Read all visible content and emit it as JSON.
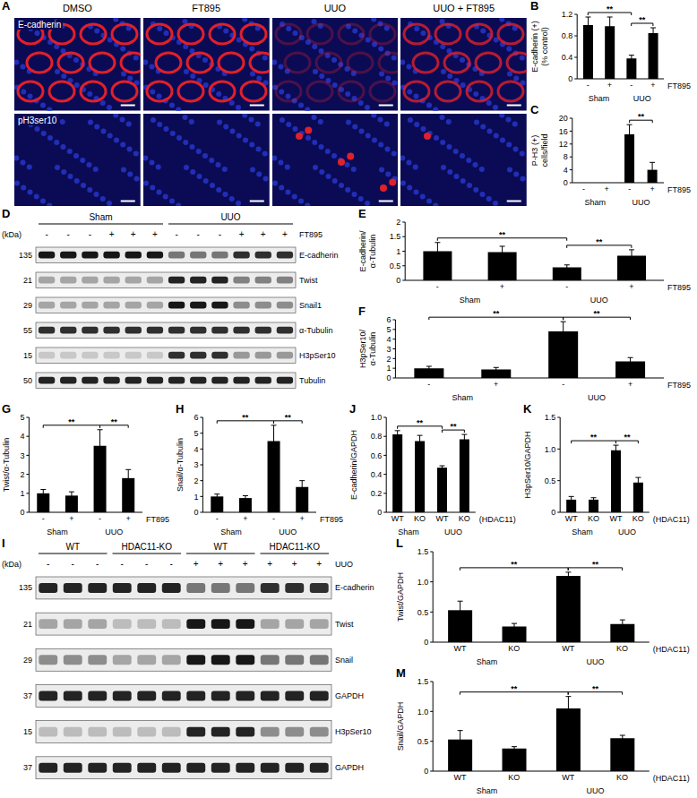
{
  "images": {
    "panel": "A",
    "columns": [
      "DMSO",
      "FT895",
      "UUO",
      "UUO + FT895"
    ],
    "background": "#0b0b55",
    "rows": [
      {
        "label": "E-cadherin",
        "color": "#e0202a",
        "marker": "ring",
        "signal": [
          1,
          1,
          0.3,
          0.8
        ]
      },
      {
        "label": "pH3ser10",
        "color": "#e0202a",
        "marker": "dot",
        "signal": [
          0,
          0,
          1,
          0.2
        ]
      }
    ]
  },
  "chart_data": [
    {
      "panel": "B",
      "type": "bar",
      "ylabel": [
        "E-cadherin (+)",
        "(% control)"
      ],
      "categories": [
        "-",
        "+",
        "-",
        "+"
      ],
      "groups": [
        "Sham",
        "UUO"
      ],
      "x_label": "FT895",
      "values": [
        1.0,
        0.98,
        0.38,
        0.85
      ],
      "errors": [
        0.15,
        0.17,
        0.06,
        0.1
      ],
      "color": "#000000",
      "ylim": [
        0,
        1.2
      ],
      "yticks": [
        0,
        0.4,
        0.8,
        1.2
      ],
      "significance": [
        {
          "from": 0,
          "to": 2,
          "label": "**"
        },
        {
          "from": 2,
          "to": 3,
          "label": "**"
        }
      ]
    },
    {
      "panel": "C",
      "type": "bar",
      "ylabel": [
        "P-H3 (+)",
        "cells/field"
      ],
      "categories": [
        "-",
        "+",
        "-",
        "+"
      ],
      "groups": [
        "Sham",
        "UUO"
      ],
      "x_label": "FT895",
      "values": [
        0,
        0,
        15,
        4
      ],
      "errors": [
        0,
        0,
        3,
        2.3
      ],
      "color": "#000000",
      "ylim": [
        0,
        20
      ],
      "yticks": [
        0,
        4,
        8,
        12,
        16,
        20
      ],
      "significance": [
        {
          "from": 2,
          "to": 3,
          "label": "**"
        }
      ]
    },
    {
      "panel": "E",
      "type": "bar",
      "ylabel": "E-cadherin/α-Tubulin",
      "categories": [
        "-",
        "+",
        "-",
        "+"
      ],
      "groups": [
        "Sham",
        "UUO"
      ],
      "x_label": "FT895",
      "values": [
        1.0,
        0.97,
        0.45,
        0.85
      ],
      "errors": [
        0.3,
        0.2,
        0.08,
        0.2
      ],
      "color": "#000000",
      "ylim": [
        0,
        2
      ],
      "yticks": [
        0,
        0.5,
        1,
        1.5,
        2
      ],
      "significance": [
        {
          "from": 0,
          "to": 2,
          "label": "**"
        },
        {
          "from": 2,
          "to": 3,
          "label": "**"
        }
      ]
    },
    {
      "panel": "F",
      "type": "bar",
      "ylabel": "H3pSer10/α-Tubulin",
      "categories": [
        "-",
        "+",
        "-",
        "+"
      ],
      "groups": [
        "Sham",
        "UUO"
      ],
      "x_label": "FT895",
      "values": [
        1.0,
        0.88,
        4.8,
        1.7
      ],
      "errors": [
        0.2,
        0.2,
        1.0,
        0.4
      ],
      "color": "#000000",
      "ylim": [
        0,
        6
      ],
      "yticks": [
        0,
        1,
        2,
        3,
        4,
        5,
        6
      ],
      "significance": [
        {
          "from": 0,
          "to": 2,
          "label": "**"
        },
        {
          "from": 2,
          "to": 3,
          "label": "**"
        }
      ]
    },
    {
      "panel": "G",
      "type": "bar",
      "ylabel": "Twist/α-Tubulin",
      "categories": [
        "-",
        "+",
        "-",
        "+"
      ],
      "groups": [
        "Sham",
        "UUO"
      ],
      "x_label": "FT895",
      "values": [
        1.0,
        0.88,
        3.5,
        1.8
      ],
      "errors": [
        0.2,
        0.2,
        0.85,
        0.45
      ],
      "color": "#000000",
      "ylim": [
        0,
        5
      ],
      "yticks": [
        0,
        1,
        2,
        3,
        4,
        5
      ],
      "significance": [
        {
          "from": 0,
          "to": 2,
          "label": "**"
        },
        {
          "from": 2,
          "to": 3,
          "label": "**"
        }
      ]
    },
    {
      "panel": "H",
      "type": "bar",
      "ylabel": "Snail/α-Tubulin",
      "categories": [
        "-",
        "+",
        "-",
        "+"
      ],
      "groups": [
        "Sham",
        "UUO"
      ],
      "x_label": "FT895",
      "values": [
        1.0,
        0.9,
        4.5,
        1.6
      ],
      "errors": [
        0.15,
        0.15,
        1.0,
        0.4
      ],
      "color": "#000000",
      "ylim": [
        0,
        6
      ],
      "yticks": [
        0,
        1,
        2,
        3,
        4,
        5,
        6
      ],
      "significance": [
        {
          "from": 0,
          "to": 2,
          "label": "**"
        },
        {
          "from": 2,
          "to": 3,
          "label": "**"
        }
      ]
    },
    {
      "panel": "J",
      "type": "bar",
      "ylabel": "E-cadherin/GAPDH",
      "categories": [
        "WT",
        "KO",
        "WT",
        "KO"
      ],
      "groups": [
        "Sham",
        "UUO"
      ],
      "x_label": "(HDAC11)",
      "values": [
        0.82,
        0.75,
        0.47,
        0.77
      ],
      "errors": [
        0.04,
        0.06,
        0.02,
        0.05
      ],
      "color": "#000000",
      "ylim": [
        0,
        1
      ],
      "yticks": [
        0,
        0.2,
        0.4,
        0.6,
        0.8,
        {
          "value": 1,
          "label": "1.0"
        }
      ],
      "significance": [
        {
          "from": 0,
          "to": 2,
          "label": "**"
        },
        {
          "from": 2,
          "to": 3,
          "label": "**"
        }
      ]
    },
    {
      "panel": "K",
      "type": "bar",
      "ylabel": "H3pSer10/GAPDH",
      "categories": [
        "WT",
        "KO",
        "WT",
        "KO"
      ],
      "groups": [
        "Sham",
        "UUO"
      ],
      "x_label": "(HDAC11)",
      "values": [
        0.2,
        0.2,
        0.98,
        0.47
      ],
      "errors": [
        0.05,
        0.03,
        0.08,
        0.08
      ],
      "color": "#000000",
      "ylim": [
        0,
        1.5
      ],
      "yticks": [
        0,
        0.5,
        {
          "value": 1,
          "label": "1.0"
        },
        1.5
      ],
      "significance": [
        {
          "from": 0,
          "to": 2,
          "label": "**"
        },
        {
          "from": 2,
          "to": 3,
          "label": "**"
        }
      ]
    },
    {
      "panel": "L",
      "type": "bar",
      "ylabel": "Twist/GAPDH",
      "categories": [
        "WT",
        "KO",
        "WT",
        "KO"
      ],
      "groups": [
        "Sham",
        "UUO"
      ],
      "x_label": "(HDAC11)",
      "values": [
        0.53,
        0.26,
        1.1,
        0.3
      ],
      "errors": [
        0.15,
        0.05,
        0.06,
        0.07
      ],
      "color": "#000000",
      "ylim": [
        0,
        1.5
      ],
      "yticks": [
        0,
        0.5,
        {
          "value": 1,
          "label": "1.0"
        },
        1.5
      ],
      "significance": [
        {
          "from": 0,
          "to": 2,
          "label": "**"
        },
        {
          "from": 2,
          "to": 3,
          "label": "**"
        }
      ]
    },
    {
      "panel": "M",
      "type": "bar",
      "ylabel": "Snail/GAPDH",
      "categories": [
        "WT",
        "KO",
        "WT",
        "KO"
      ],
      "groups": [
        "Sham",
        "UUO"
      ],
      "x_label": "(HDAC11)",
      "values": [
        0.53,
        0.38,
        1.05,
        0.55
      ],
      "errors": [
        0.15,
        0.03,
        0.2,
        0.05
      ],
      "color": "#000000",
      "ylim": [
        0,
        1.5
      ],
      "yticks": [
        0,
        0.5,
        {
          "value": 1,
          "label": "1.0"
        },
        1.5
      ],
      "significance": [
        {
          "from": 0,
          "to": 2,
          "label": "**"
        },
        {
          "from": 2,
          "to": 3,
          "label": "**"
        }
      ]
    }
  ],
  "blots": [
    {
      "panel": "D",
      "kda_label": "(kDa)",
      "groups": [
        {
          "label": "Sham",
          "lanes": 6
        },
        {
          "label": "UUO",
          "lanes": 6
        }
      ],
      "treatment": {
        "label": "FT895",
        "signs": [
          "-",
          "-",
          "-",
          "+",
          "+",
          "+",
          "-",
          "-",
          "-",
          "+",
          "+",
          "+"
        ]
      },
      "rows": [
        {
          "kda": 135,
          "name": "E-cadherin",
          "bands": [
            0.9,
            0.9,
            0.9,
            0.9,
            0.9,
            0.9,
            0.5,
            0.5,
            0.5,
            0.8,
            0.8,
            0.8
          ]
        },
        {
          "kda": 21,
          "name": "Twist",
          "bands": [
            0.3,
            0.3,
            0.3,
            0.3,
            0.3,
            0.3,
            0.85,
            0.85,
            0.85,
            0.45,
            0.45,
            0.45
          ]
        },
        {
          "kda": 29,
          "name": "Snail1",
          "bands": [
            0.3,
            0.3,
            0.3,
            0.3,
            0.3,
            0.3,
            0.9,
            0.9,
            0.9,
            0.4,
            0.4,
            0.4
          ]
        },
        {
          "kda": 55,
          "name": "α-Tubulin",
          "bands": [
            0.8,
            0.8,
            0.8,
            0.8,
            0.8,
            0.8,
            0.8,
            0.8,
            0.8,
            0.8,
            0.8,
            0.8
          ]
        },
        {
          "kda": 15,
          "name": "H3pSer10",
          "bands": [
            0.15,
            0.15,
            0.15,
            0.15,
            0.15,
            0.15,
            0.8,
            0.8,
            0.8,
            0.35,
            0.35,
            0.35
          ]
        },
        {
          "kda": 50,
          "name": "Tubulin",
          "bands": [
            0.85,
            0.85,
            0.85,
            0.85,
            0.85,
            0.85,
            0.85,
            0.85,
            0.85,
            0.85,
            0.85,
            0.85
          ]
        }
      ]
    },
    {
      "panel": "I",
      "kda_label": "(kDa)",
      "groups": [
        {
          "label": "WT",
          "lanes": 3
        },
        {
          "label": "HDAC11-KO",
          "lanes": 3
        },
        {
          "label": "WT",
          "lanes": 3
        },
        {
          "label": "HDAC11-KO",
          "lanes": 3
        }
      ],
      "treatment": {
        "label": "UUO",
        "signs": [
          "-",
          "-",
          "-",
          "-",
          "-",
          "-",
          "+",
          "+",
          "+",
          "+",
          "+",
          "+"
        ]
      },
      "rows": [
        {
          "kda": 135,
          "name": "E-cadherin",
          "bands": [
            0.85,
            0.85,
            0.85,
            0.85,
            0.85,
            0.85,
            0.5,
            0.5,
            0.5,
            0.8,
            0.8,
            0.8
          ]
        },
        {
          "kda": 21,
          "name": "Twist",
          "bands": [
            0.3,
            0.3,
            0.3,
            0.2,
            0.2,
            0.2,
            0.9,
            0.9,
            0.9,
            0.3,
            0.3,
            0.3
          ]
        },
        {
          "kda": 29,
          "name": "Snail",
          "bands": [
            0.4,
            0.4,
            0.4,
            0.3,
            0.3,
            0.3,
            0.9,
            0.9,
            0.9,
            0.5,
            0.5,
            0.5
          ]
        },
        {
          "kda": 37,
          "name": "GAPDH",
          "bands": [
            0.85,
            0.85,
            0.85,
            0.85,
            0.85,
            0.85,
            0.85,
            0.85,
            0.85,
            0.85,
            0.85,
            0.85
          ]
        },
        {
          "kda": 15,
          "name": "H3pSer10",
          "bands": [
            0.2,
            0.2,
            0.2,
            0.2,
            0.2,
            0.2,
            0.85,
            0.85,
            0.85,
            0.4,
            0.4,
            0.4
          ]
        },
        {
          "kda": 37,
          "name": "GAPDH",
          "bands": [
            0.85,
            0.85,
            0.85,
            0.85,
            0.85,
            0.85,
            0.85,
            0.85,
            0.85,
            0.85,
            0.85,
            0.85
          ]
        }
      ]
    }
  ]
}
